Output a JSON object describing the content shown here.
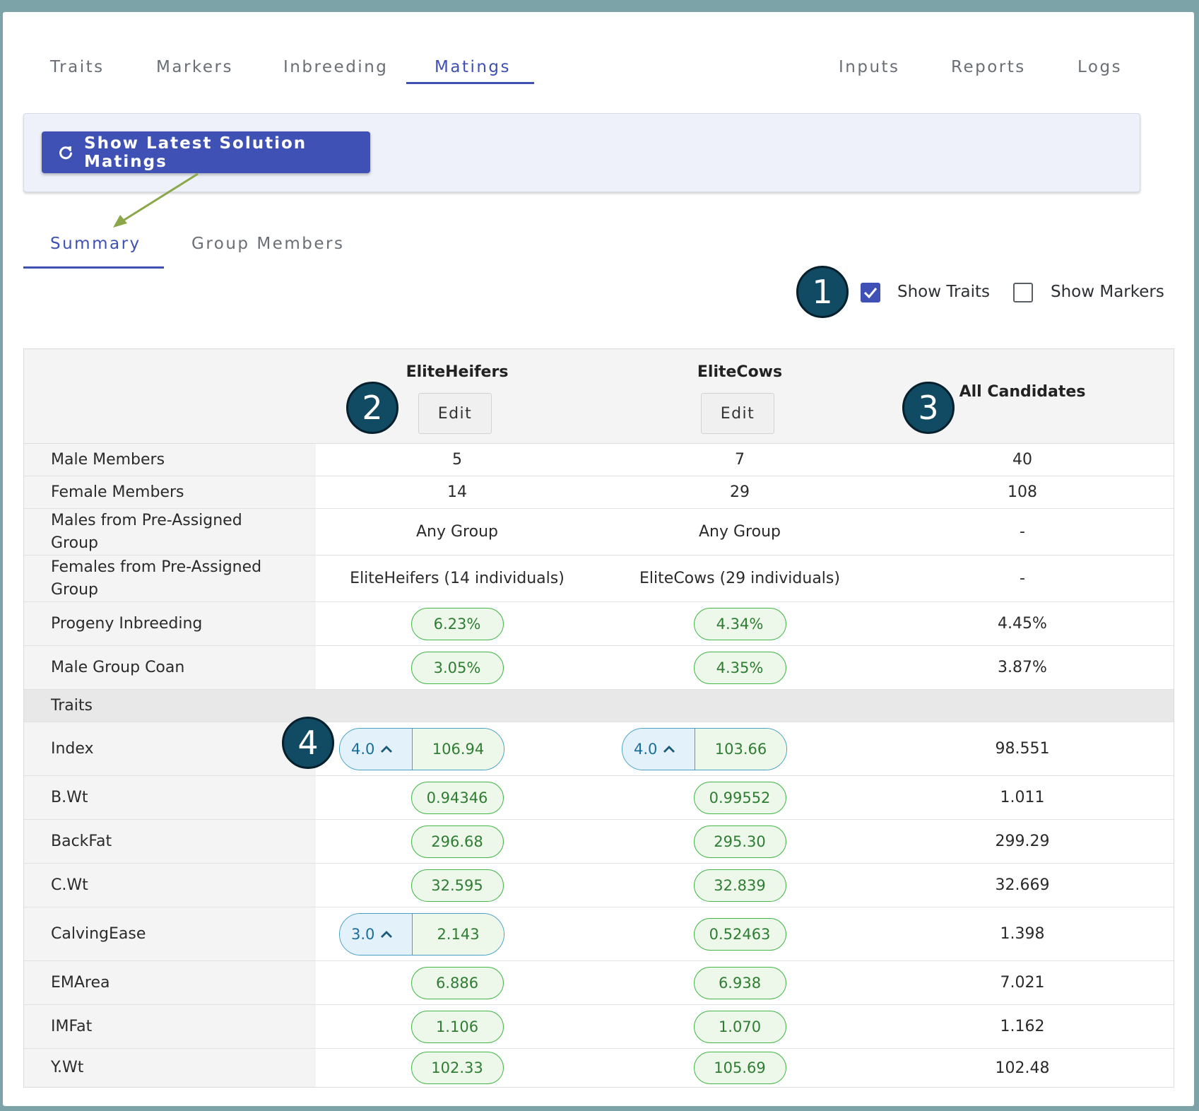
{
  "tabs": {
    "traits": "Traits",
    "markers": "Markers",
    "inbreeding": "Inbreeding",
    "matings": "Matings",
    "inputs": "Inputs",
    "reports": "Reports",
    "logs": "Logs"
  },
  "toolbar": {
    "show_latest_label": "Show Latest Solution Matings",
    "icon": "refresh-icon"
  },
  "subtabs": {
    "summary": "Summary",
    "group_members": "Group Members"
  },
  "options": {
    "show_traits": {
      "label": "Show Traits",
      "checked": true
    },
    "show_markers": {
      "label": "Show Markers",
      "checked": false
    }
  },
  "badges": {
    "b1": "1",
    "b2": "2",
    "b3": "3",
    "b4": "4"
  },
  "table": {
    "columns": {
      "c1": "EliteHeifers",
      "c2": "EliteCows",
      "c3": "All Candidates",
      "edit": "Edit"
    },
    "rows": {
      "male_members": {
        "label": "Male Members",
        "v": [
          "5",
          "7",
          "40"
        ]
      },
      "female_members": {
        "label": "Female Members",
        "v": [
          "14",
          "29",
          "108"
        ]
      },
      "males_pre": {
        "label": "Males from Pre-Assigned Group",
        "v": [
          "Any Group",
          "Any Group",
          "-"
        ]
      },
      "females_pre": {
        "label": "Females from Pre-Assigned Group",
        "v": [
          "EliteHeifers (14 individuals)",
          "EliteCows (29 individuals)",
          "-"
        ]
      },
      "progeny_inbreeding": {
        "label": "Progeny Inbreeding",
        "v": [
          "6.23%",
          "4.34%",
          "4.45%"
        ]
      },
      "male_group_coan": {
        "label": "Male Group Coan",
        "v": [
          "3.05%",
          "4.35%",
          "3.87%"
        ]
      },
      "traits_section": {
        "label": "Traits"
      },
      "index": {
        "label": "Index",
        "weights": [
          "4.0",
          "4.0"
        ],
        "v": [
          "106.94",
          "103.66",
          "98.551"
        ]
      },
      "bwt": {
        "label": "B.Wt",
        "v": [
          "0.94346",
          "0.99552",
          "1.011"
        ]
      },
      "backfat": {
        "label": "BackFat",
        "v": [
          "296.68",
          "295.30",
          "299.29"
        ]
      },
      "cwt": {
        "label": "C.Wt",
        "v": [
          "32.595",
          "32.839",
          "32.669"
        ]
      },
      "calvingease": {
        "label": "CalvingEase",
        "weights": [
          "3.0"
        ],
        "v": [
          "2.143",
          "0.52463",
          "1.398"
        ]
      },
      "emarea": {
        "label": "EMArea",
        "v": [
          "6.886",
          "6.938",
          "7.021"
        ]
      },
      "imfat": {
        "label": "IMFat",
        "v": [
          "1.106",
          "1.070",
          "1.162"
        ]
      },
      "ywt": {
        "label": "Y.Wt",
        "v": [
          "102.33",
          "105.69",
          "102.48"
        ]
      }
    }
  },
  "colors": {
    "accent": "#3f51b5",
    "pill_green": "#46b84a",
    "pill_blue": "#46a0c4",
    "badge": "#104a63",
    "arrow": "#8aa84a"
  }
}
